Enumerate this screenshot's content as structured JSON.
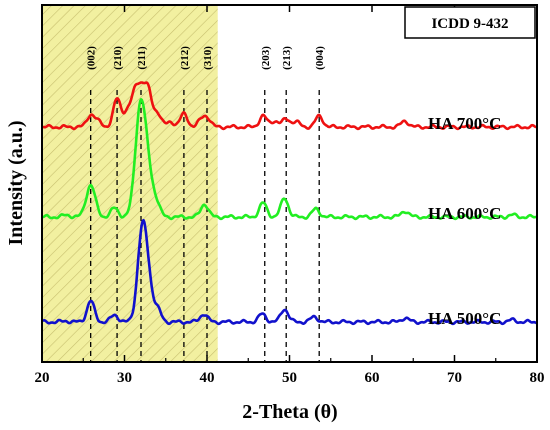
{
  "chart_data": {
    "type": "line",
    "xlabel": "2-Theta (θ)",
    "ylabel": "Intensity (a.u.)",
    "xlim": [
      20,
      80
    ],
    "x_ticks": [
      "20",
      "30",
      "40",
      "50",
      "60",
      "70",
      "80"
    ],
    "y_ticks_labeled": false,
    "legend_box": "ICDD 9-432",
    "highlight_region": {
      "x_start": 20,
      "x_end": 41.3,
      "color": "#f2f0a0",
      "pattern": "diagonal hatch"
    },
    "reference_peaks": [
      {
        "hkl": "(002)",
        "x": 25.9
      },
      {
        "hkl": "(210)",
        "x": 29.1
      },
      {
        "hkl": "(211)",
        "x": 32.0
      },
      {
        "hkl": "(212)",
        "x": 37.2
      },
      {
        "hkl": "(310)",
        "x": 40.0
      },
      {
        "hkl": "(203)",
        "x": 47.0
      },
      {
        "hkl": "(213)",
        "x": 49.6
      },
      {
        "hkl": "(004)",
        "x": 53.6
      }
    ],
    "series": [
      {
        "name": "HA 700°C",
        "color": "#ee1111",
        "baseline": 235,
        "peaks": [
          [
            25.9,
            12
          ],
          [
            26.8,
            5
          ],
          [
            29.1,
            28
          ],
          [
            30.3,
            14
          ],
          [
            31.2,
            24
          ],
          [
            32.0,
            36
          ],
          [
            32.9,
            30
          ],
          [
            34.0,
            14
          ],
          [
            35.6,
            5
          ],
          [
            37.2,
            13
          ],
          [
            39.3,
            6
          ],
          [
            40.0,
            9
          ],
          [
            46.8,
            11
          ],
          [
            48.2,
            6
          ],
          [
            49.6,
            8
          ],
          [
            50.8,
            5
          ],
          [
            53.6,
            11
          ],
          [
            64.0,
            6
          ]
        ]
      },
      {
        "name": "HA 600°C",
        "color": "#22ee22",
        "baseline": 145,
        "peaks": [
          [
            23.0,
            2
          ],
          [
            25.9,
            32
          ],
          [
            28.8,
            9
          ],
          [
            31.6,
            46
          ],
          [
            32.1,
            74
          ],
          [
            32.9,
            38
          ],
          [
            33.9,
            12
          ],
          [
            39.7,
            13
          ],
          [
            46.8,
            14
          ],
          [
            49.4,
            19
          ],
          [
            53.2,
            8
          ],
          [
            64.0,
            6
          ],
          [
            77.0,
            2
          ]
        ]
      },
      {
        "name": "HA 500°C",
        "color": "#1111cc",
        "baseline": 40,
        "peaks": [
          [
            22.9,
            1
          ],
          [
            25.9,
            21
          ],
          [
            28.8,
            7
          ],
          [
            32.1,
            80
          ],
          [
            32.8,
            38
          ],
          [
            34.0,
            12
          ],
          [
            39.6,
            8
          ],
          [
            46.7,
            8
          ],
          [
            49.4,
            13
          ],
          [
            53.0,
            5
          ],
          [
            64.0,
            4
          ],
          [
            77.0,
            2
          ]
        ]
      }
    ]
  }
}
